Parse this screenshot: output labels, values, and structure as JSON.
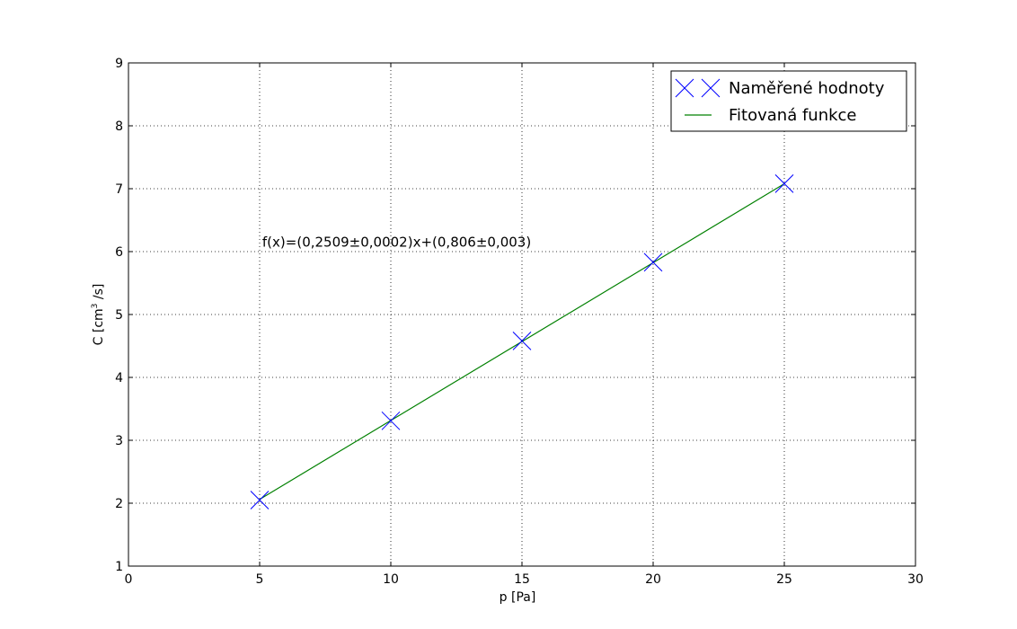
{
  "chart_data": {
    "type": "scatter",
    "xlabel": "p [Pa]",
    "ylabel_parts": [
      "C [cm",
      "3",
      " /s]"
    ],
    "xlim": [
      0,
      30
    ],
    "ylim": [
      1,
      9
    ],
    "xticks": [
      0,
      5,
      10,
      15,
      20,
      25,
      30
    ],
    "yticks": [
      1,
      2,
      3,
      4,
      5,
      6,
      7,
      8,
      9
    ],
    "grid": true,
    "legend_position": "top-right",
    "series": [
      {
        "name": "Naměřené hodnoty",
        "kind": "marker-x",
        "color": "#0000ff",
        "x": [
          5,
          10,
          15,
          20,
          25
        ],
        "y": [
          2.05,
          3.31,
          4.58,
          5.83,
          7.08
        ]
      },
      {
        "name": "Fitovaná funkce",
        "kind": "line",
        "color": "#008000",
        "x": [
          5,
          25
        ],
        "y": [
          2.0605,
          7.0785
        ]
      }
    ],
    "annotation": {
      "text": "f(x)=(0,2509±0,0002)x+(0,806±0,003)",
      "x": 5.1,
      "y": 6.15
    }
  }
}
